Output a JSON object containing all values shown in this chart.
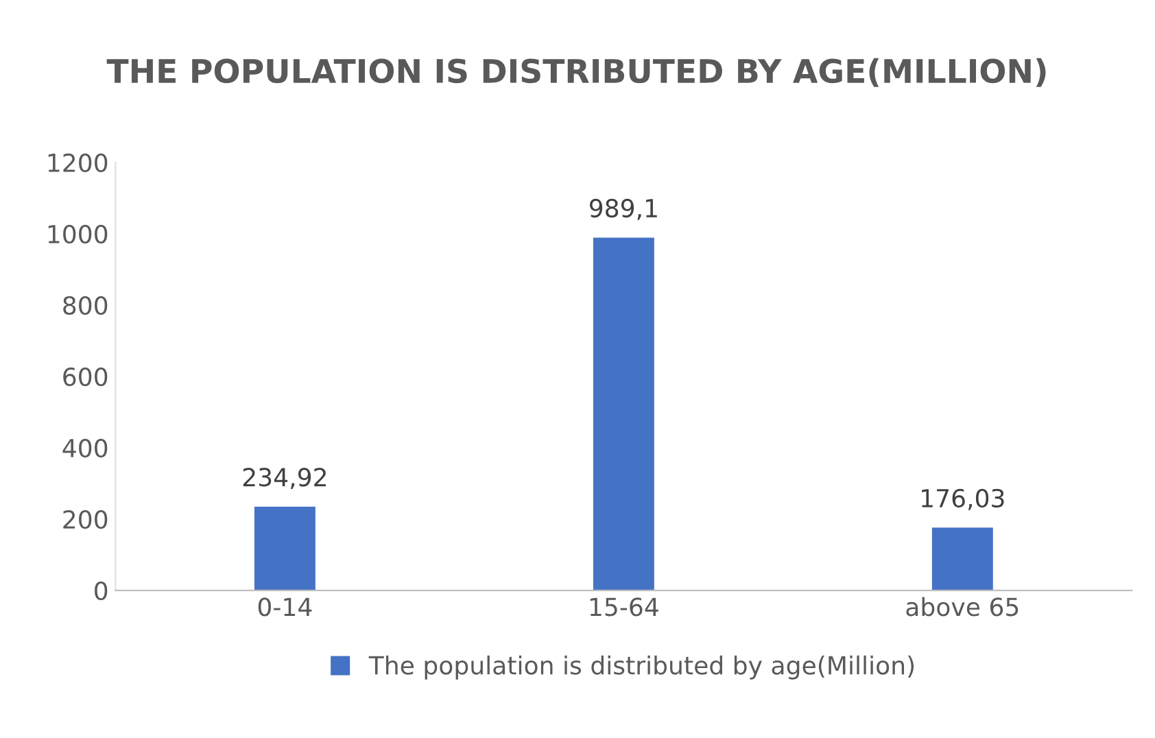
{
  "chart_data": {
    "type": "bar",
    "title": "THE POPULATION IS DISTRIBUTED BY AGE(MILLION)",
    "categories": [
      "0-14",
      "15-64",
      "above 65"
    ],
    "series": [
      {
        "name": "The population is distributed by age(Million)",
        "color": "#4472c4",
        "values": [
          234.92,
          989.1,
          176.03
        ],
        "value_labels": [
          "234,92",
          "989,1",
          "176,03"
        ]
      }
    ],
    "ylim": [
      0,
      1200
    ],
    "yticks": [
      0,
      200,
      400,
      600,
      800,
      1000,
      1200
    ],
    "grid": false,
    "legend": "bottom"
  }
}
